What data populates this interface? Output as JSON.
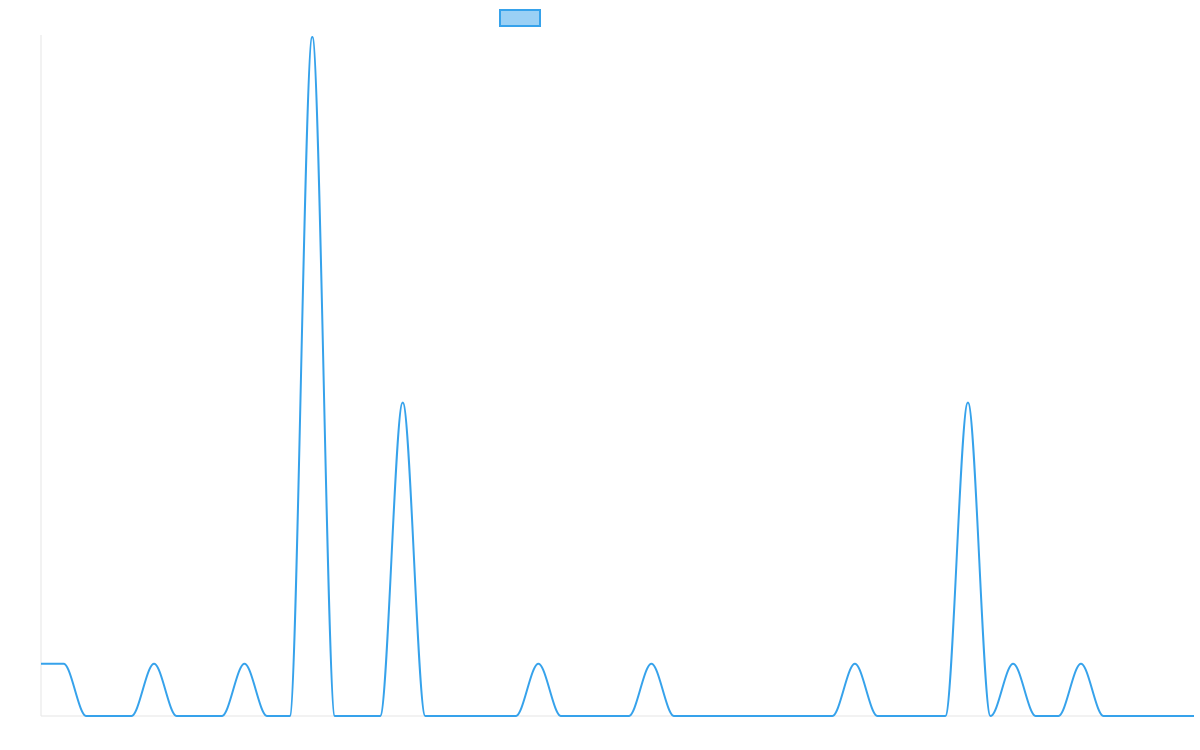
{
  "chart_data": {
    "type": "line",
    "title": "",
    "xlabel": "",
    "ylabel": "",
    "x": [
      0,
      1,
      2,
      3,
      4,
      5,
      6,
      7,
      8,
      9,
      10,
      11,
      12,
      13,
      14,
      15,
      16,
      17,
      18,
      19,
      20,
      21,
      22,
      23,
      24,
      25,
      26,
      27,
      28,
      29,
      30,
      31,
      32,
      33,
      34,
      35,
      36,
      37,
      38,
      39,
      40,
      41,
      42,
      43,
      44,
      45,
      46,
      47,
      48,
      49,
      50,
      51
    ],
    "series": [
      {
        "name": "",
        "color": "#36a2eb",
        "fill": "#9ad0f5",
        "values": [
          1,
          1,
          0,
          0,
          0,
          1,
          0,
          0,
          0,
          1,
          0,
          0,
          13,
          0,
          0,
          0,
          6,
          0,
          0,
          0,
          0,
          0,
          1,
          0,
          0,
          0,
          0,
          1,
          0,
          0,
          0,
          0,
          0,
          0,
          0,
          0,
          1,
          0,
          0,
          0,
          0,
          6,
          0,
          1,
          0,
          0,
          1,
          0,
          0,
          0,
          0,
          0
        ]
      }
    ],
    "ylim": [
      0,
      13
    ],
    "grid": false,
    "legend": "top-center"
  }
}
